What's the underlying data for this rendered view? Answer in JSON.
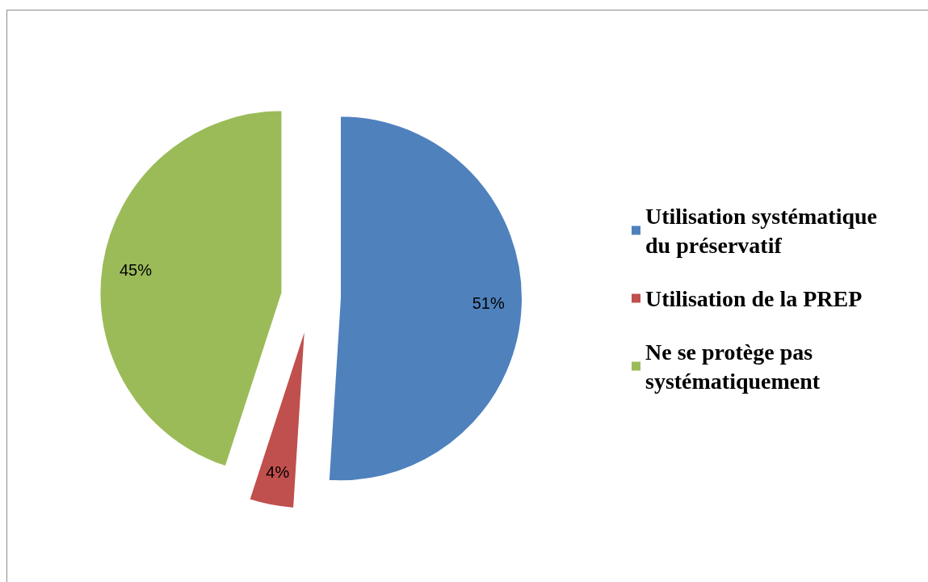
{
  "chart_data": {
    "type": "pie",
    "categories": [
      "Utilisation systématique du préservatif",
      "Utilisation de la PREP",
      "Ne se protège pas systématiquement"
    ],
    "values": [
      51,
      4,
      45
    ],
    "colors": [
      "#4f81bd",
      "#c0504d",
      "#9bbb59"
    ],
    "value_labels": [
      "51%",
      "4%",
      "45%"
    ],
    "legend": "right"
  }
}
